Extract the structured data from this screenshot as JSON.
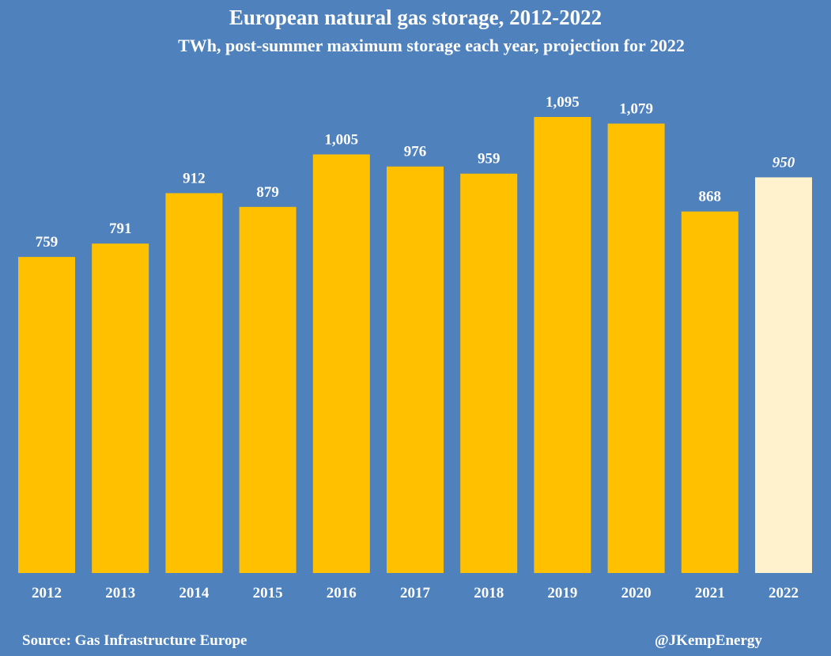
{
  "chart_data": {
    "type": "bar",
    "title": "European natural gas storage, 2012-2022",
    "subtitle": "TWh, post-summer maximum storage each year, projection for 2022",
    "categories": [
      "2012",
      "2013",
      "2014",
      "2015",
      "2016",
      "2017",
      "2018",
      "2019",
      "2020",
      "2021",
      "2022"
    ],
    "values": [
      759,
      791,
      912,
      879,
      1005,
      976,
      959,
      1095,
      1079,
      868,
      950
    ],
    "value_labels": [
      "759",
      "791",
      "912",
      "879",
      "1,005",
      "976",
      "959",
      "1,095",
      "1,079",
      "868",
      "950"
    ],
    "projected": [
      false,
      false,
      false,
      false,
      false,
      false,
      false,
      false,
      false,
      false,
      true
    ],
    "ylim": [
      0,
      1095
    ],
    "xlabel": "",
    "ylabel": "",
    "grid": false,
    "legend": "none",
    "colors": {
      "background": "#4f81bd",
      "bar": "#ffc000",
      "projected_bar": "#fff2cc",
      "text": "#ffffff"
    }
  },
  "footer": {
    "source": "Source: Gas Infrastructure Europe",
    "handle": "@JKempEnergy"
  }
}
